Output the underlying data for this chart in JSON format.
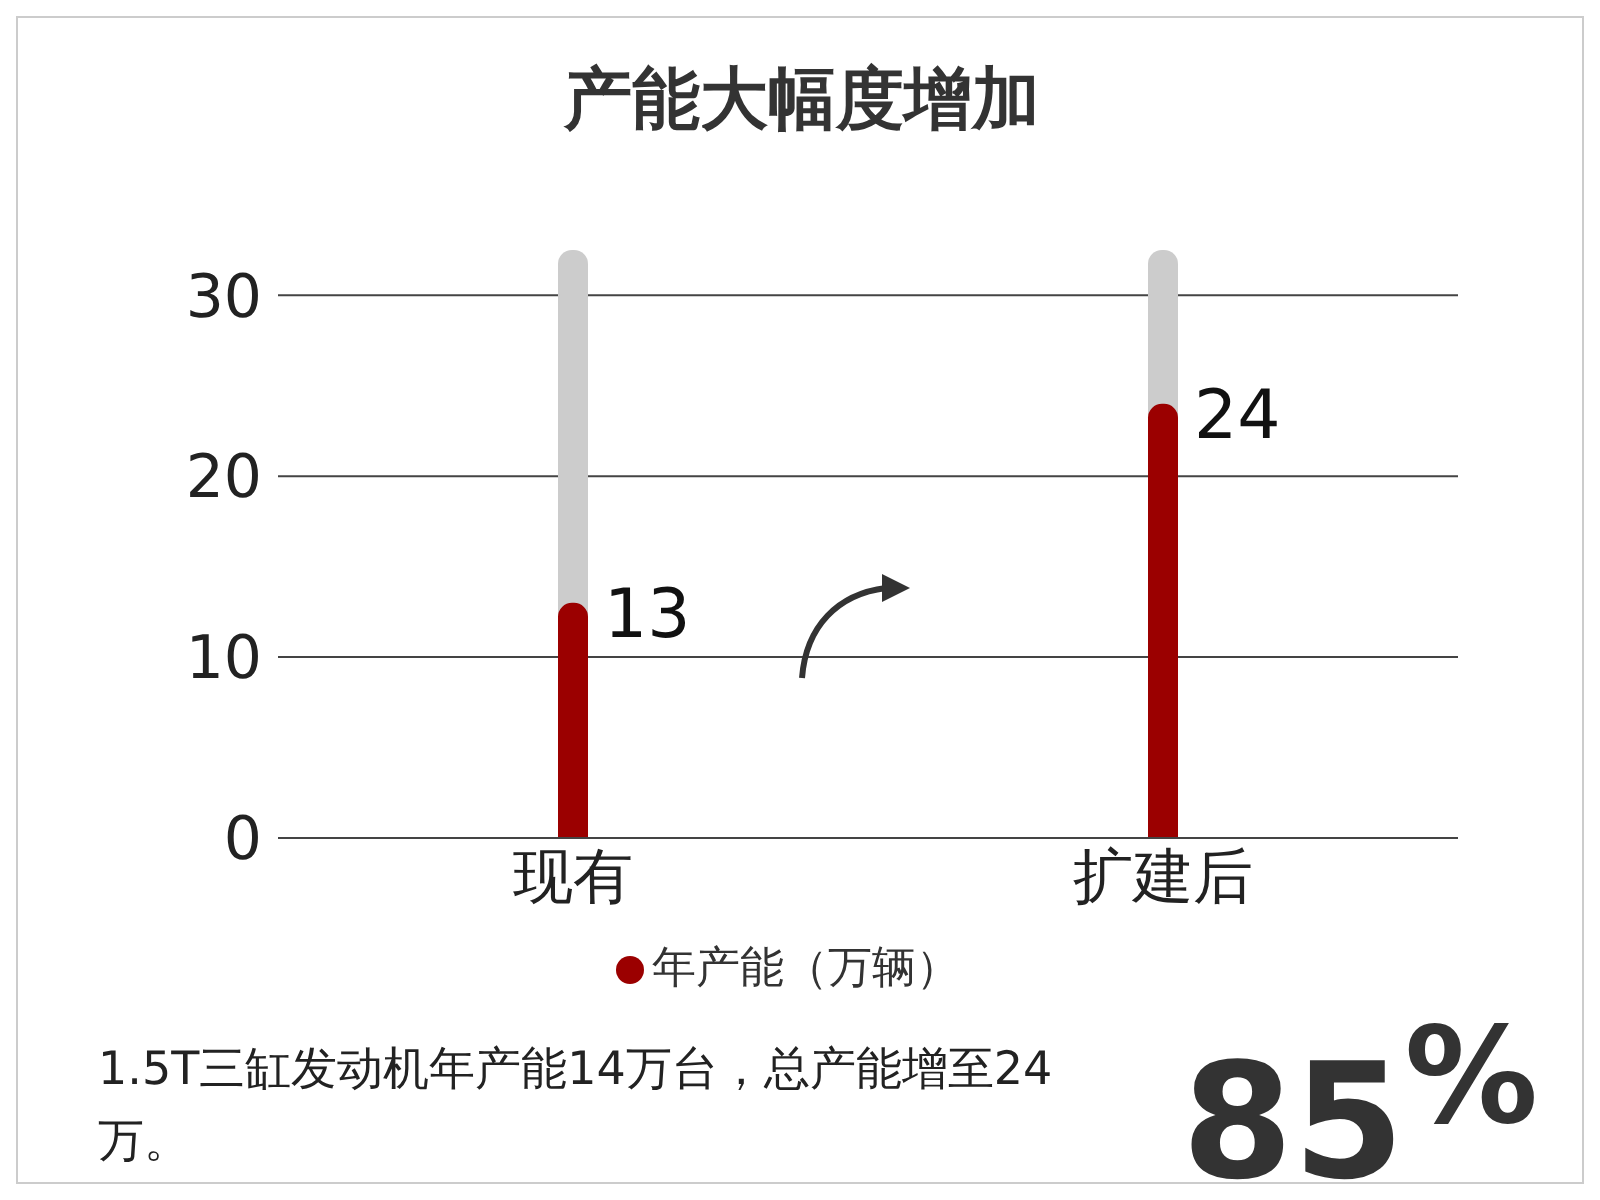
{
  "chart_data": {
    "type": "bar",
    "title": "产能大幅度增加",
    "categories": [
      "现有",
      "扩建后"
    ],
    "series": [
      {
        "name": "年产能（万辆）",
        "color": "#9b0000",
        "values": [
          13,
          24
        ]
      }
    ],
    "ylim": [
      0,
      32.5
    ],
    "yticks": [
      0,
      10,
      20,
      30
    ],
    "grid": "y",
    "legend": "bottom",
    "data_labels": true,
    "annotations": [
      "1.5T三缸发动机年产能14万台，总产能增至24万。",
      "85$^{%}$"
    ]
  }
}
